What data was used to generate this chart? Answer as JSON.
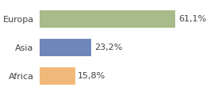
{
  "categories": [
    "Europa",
    "Asia",
    "Africa"
  ],
  "values": [
    61.1,
    23.2,
    15.8
  ],
  "labels": [
    "61,1%",
    "23,2%",
    "15,8%"
  ],
  "bar_colors": [
    "#a8bb8a",
    "#6f86b8",
    "#f0b97a"
  ],
  "background_color": "#ffffff",
  "xlim": [
    0,
    80
  ],
  "label_fontsize": 8,
  "tick_fontsize": 8
}
